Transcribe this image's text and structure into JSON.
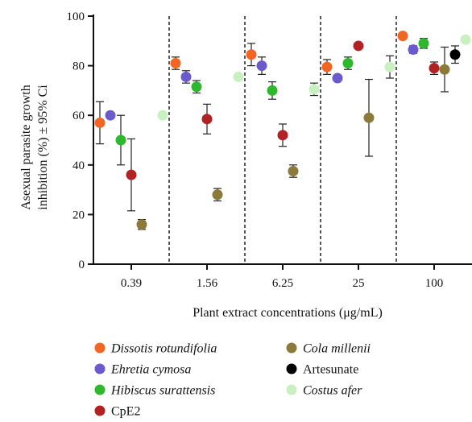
{
  "chart_data": {
    "type": "scatter",
    "title": "",
    "xlabel": "Plant extract concentrations (μg/mL)",
    "ylabel_line1": "Asexual parasite growth",
    "ylabel_line2": "inhibition (%) ± 95% Ci",
    "ylim": [
      0,
      100
    ],
    "yticks": [
      0,
      20,
      40,
      60,
      80,
      100
    ],
    "categories": [
      "0.39",
      "1.56",
      "6.25",
      "25",
      "100"
    ],
    "error_bars": true,
    "group_separators": "dashed",
    "legend_placement": "bottom",
    "series": [
      {
        "name": "Dissotis rotundifolia",
        "italic": true,
        "color": "#f26522",
        "values": [
          57,
          81,
          84.5,
          79.5,
          92
        ],
        "errors": [
          8.5,
          2.5,
          4.5,
          3,
          1
        ]
      },
      {
        "name": "Ehretia cymosa",
        "italic": true,
        "color": "#6a5acd",
        "values": [
          60,
          75.5,
          80,
          75,
          86.5
        ],
        "errors": [
          1,
          2.5,
          3.5,
          1,
          1.5
        ]
      },
      {
        "name": "Hibiscus surattensis",
        "italic": true,
        "color": "#2db82d",
        "values": [
          50,
          71.5,
          70,
          81,
          89
        ],
        "errors": [
          10,
          2.5,
          3.5,
          2.5,
          2
        ]
      },
      {
        "name": "CpE2",
        "italic": false,
        "color": "#b22222",
        "values": [
          36,
          58.5,
          52,
          88,
          79
        ],
        "errors": [
          14.5,
          6,
          4.5,
          1,
          2.5
        ]
      },
      {
        "name": "Cola millenii",
        "italic": true,
        "color": "#8b7a3a",
        "values": [
          16,
          28,
          37.5,
          59,
          78.5
        ],
        "errors": [
          2,
          2.5,
          2.5,
          15.5,
          9
        ]
      },
      {
        "name": "Artesunate",
        "italic": false,
        "color": "#000000",
        "values": [
          null,
          null,
          null,
          null,
          84.5
        ],
        "errors": [
          0,
          0,
          0,
          0,
          3.5
        ]
      },
      {
        "name": "Costus afer",
        "italic": true,
        "color": "#c8f0c0",
        "values": [
          60,
          75.5,
          70.5,
          79.5,
          90.5
        ],
        "errors": [
          1,
          1,
          2.5,
          4.5,
          1
        ]
      }
    ]
  }
}
